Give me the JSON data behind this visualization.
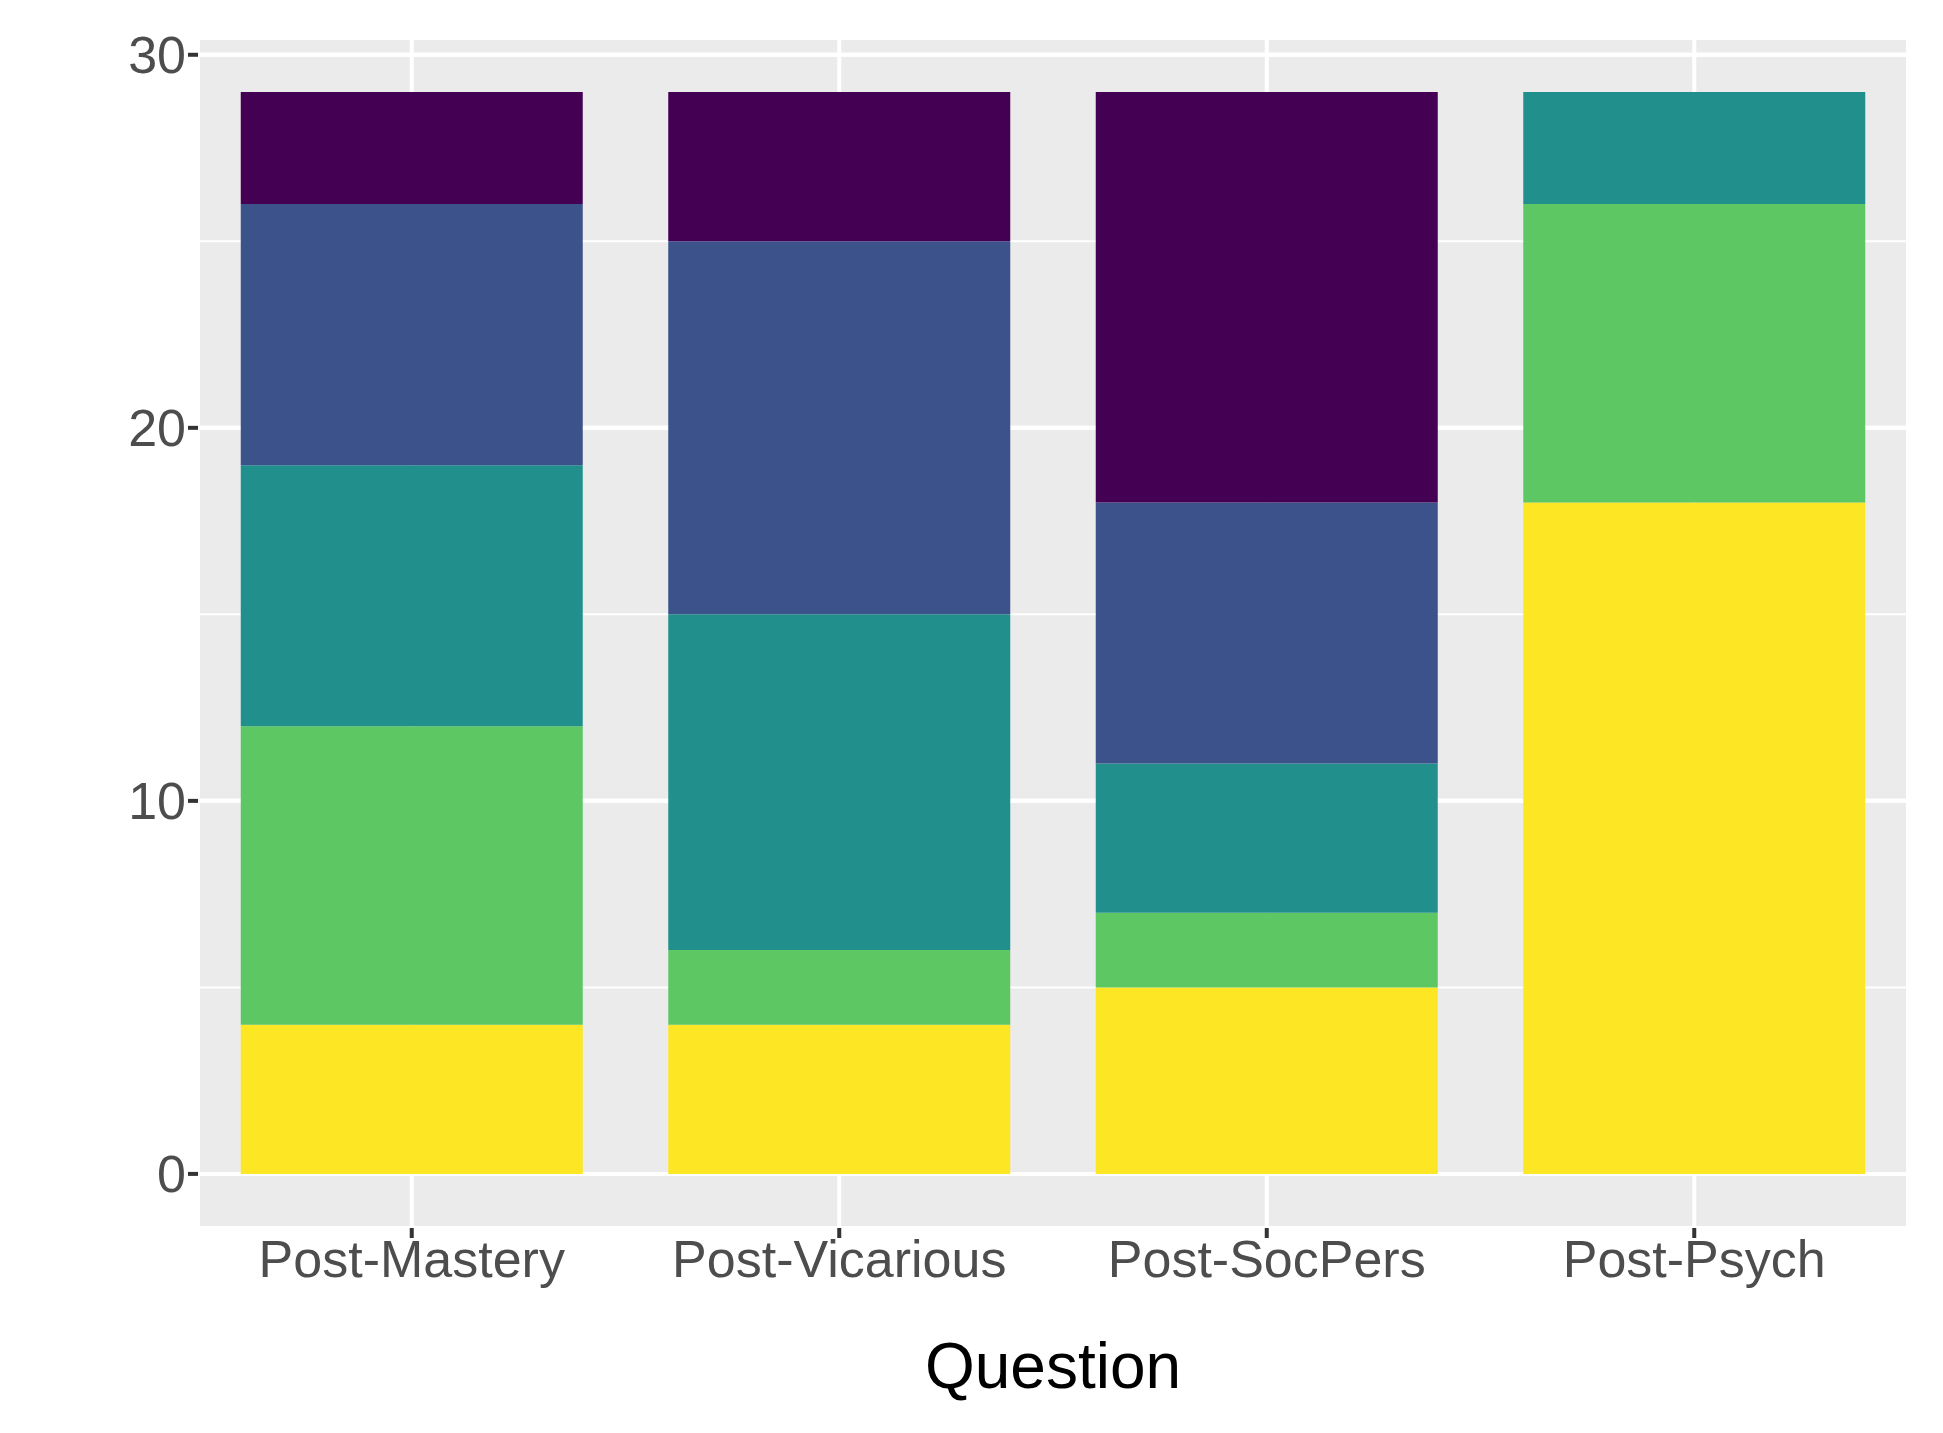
{
  "chart_data": {
    "type": "bar",
    "stacked": true,
    "xlabel": "Question",
    "categories": [
      "Post-Mastery",
      "Post-Vicarious",
      "Post-SocPers",
      "Post-Psych"
    ],
    "series": [
      {
        "color": "#fde725",
        "values": [
          4,
          4,
          5,
          18
        ]
      },
      {
        "color": "#5dc863",
        "values": [
          8,
          2,
          2,
          8
        ]
      },
      {
        "color": "#21908c",
        "values": [
          7,
          9,
          4,
          3
        ]
      },
      {
        "color": "#3b528b",
        "values": [
          7,
          10,
          7,
          0
        ]
      },
      {
        "color": "#440154",
        "values": [
          3,
          4,
          11,
          0
        ]
      }
    ],
    "ylim": [
      -1.45,
      30.45
    ],
    "yticks": [
      0,
      10,
      20,
      30
    ],
    "grid": true
  }
}
